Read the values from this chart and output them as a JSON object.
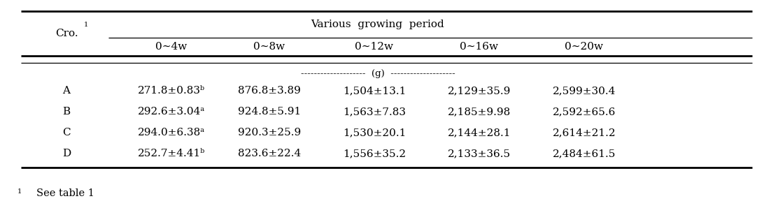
{
  "title": "Various  growing  period",
  "col_header": [
    "Cro.",
    "0∼4w",
    "0∼8w",
    "0∼12w",
    "0∼16w",
    "0∼20w"
  ],
  "unit_row": "--------------------  (g)  --------------------",
  "rows": [
    [
      "A",
      "271.8±0.83ᵇ",
      "876.8±3.89",
      "1,504±13.1",
      "2,129±35.9",
      "2,599±30.4"
    ],
    [
      "B",
      "292.6±3.04ᵃ",
      "924.8±5.91",
      "1,563±7.83",
      "2,185±9.98",
      "2,592±65.6"
    ],
    [
      "C",
      "294.0±6.38ᵃ",
      "920.3±25.9",
      "1,530±20.1",
      "2,144±28.1",
      "2,614±21.2"
    ],
    [
      "D",
      "252.7±4.41ᵇ",
      "823.6±22.4",
      "1,556±35.2",
      "2,133±36.5",
      "2,484±61.5"
    ]
  ],
  "footnote": "1 See table 1",
  "bg_color": "#ffffff",
  "text_color": "#000000",
  "font_size": 11.0
}
